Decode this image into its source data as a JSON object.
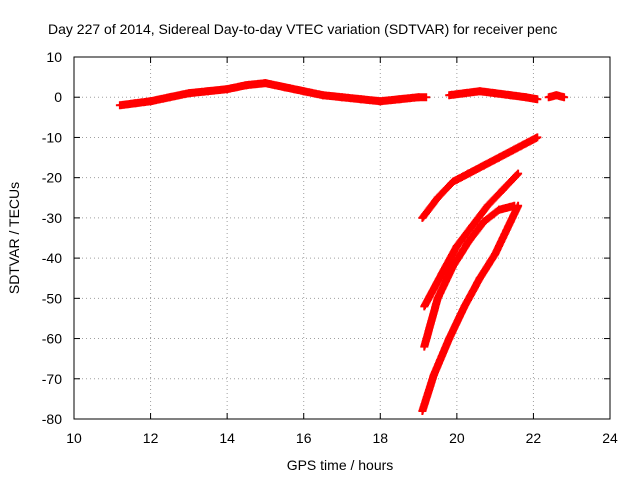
{
  "chart_data": {
    "type": "scatter",
    "title": "Day 227 of 2014, Sidereal Day-to-day VTEC variation (SDTVAR) for receiver penc",
    "xlabel": "GPS time / hours",
    "ylabel": "SDTVAR / TECUs",
    "xlim": [
      10,
      24
    ],
    "ylim": [
      -80,
      10
    ],
    "xticks": [
      "10",
      "12",
      "14",
      "16",
      "18",
      "20",
      "22",
      "24"
    ],
    "yticks": [
      "10",
      "0",
      "-10",
      "-20",
      "-30",
      "-40",
      "-50",
      "-60",
      "-70",
      "-80"
    ],
    "grid": true,
    "legend": "none",
    "marker": "plus",
    "series_color": "#ff0000",
    "series": [
      {
        "x": [
          11.2,
          11.6,
          12.0,
          12.5,
          13.0,
          13.5,
          14.0,
          14.5,
          15.0,
          15.5,
          16.0,
          16.5,
          17.0,
          17.5,
          18.0,
          18.5,
          19.0,
          19.2
        ],
        "y": [
          -2,
          -1.5,
          -1,
          0,
          1,
          1.5,
          2,
          3,
          3.5,
          2.5,
          1.5,
          0.5,
          0,
          -0.5,
          -1,
          -0.5,
          0,
          0
        ]
      },
      {
        "x": [
          19.8,
          20.2,
          20.6,
          21.0,
          21.4,
          21.8,
          22.1
        ],
        "y": [
          0.5,
          1,
          1.5,
          1,
          0.5,
          0,
          -0.5
        ]
      },
      {
        "x": [
          22.4,
          22.6,
          22.8
        ],
        "y": [
          0,
          0.5,
          0
        ]
      },
      {
        "x": [
          19.1,
          19.5,
          19.9,
          20.3,
          20.7,
          21.1,
          21.5,
          21.9,
          22.1
        ],
        "y": [
          -30,
          -25,
          -21,
          -19,
          -17,
          -15,
          -13,
          -11,
          -10
        ]
      },
      {
        "x": [
          19.15,
          19.6,
          20.0,
          20.4,
          20.8,
          21.2,
          21.6
        ],
        "y": [
          -52,
          -44,
          -37,
          -32,
          -27,
          -23,
          -19
        ]
      },
      {
        "x": [
          19.15,
          19.5,
          19.9,
          20.3,
          20.7,
          21.1,
          21.5
        ],
        "y": [
          -62,
          -50,
          -42,
          -36,
          -31,
          -28,
          -27
        ]
      },
      {
        "x": [
          19.1,
          19.4,
          19.8,
          20.2,
          20.6,
          21.0,
          21.4,
          21.6
        ],
        "y": [
          -78,
          -69,
          -60,
          -52,
          -45,
          -39,
          -31,
          -27
        ]
      }
    ]
  }
}
